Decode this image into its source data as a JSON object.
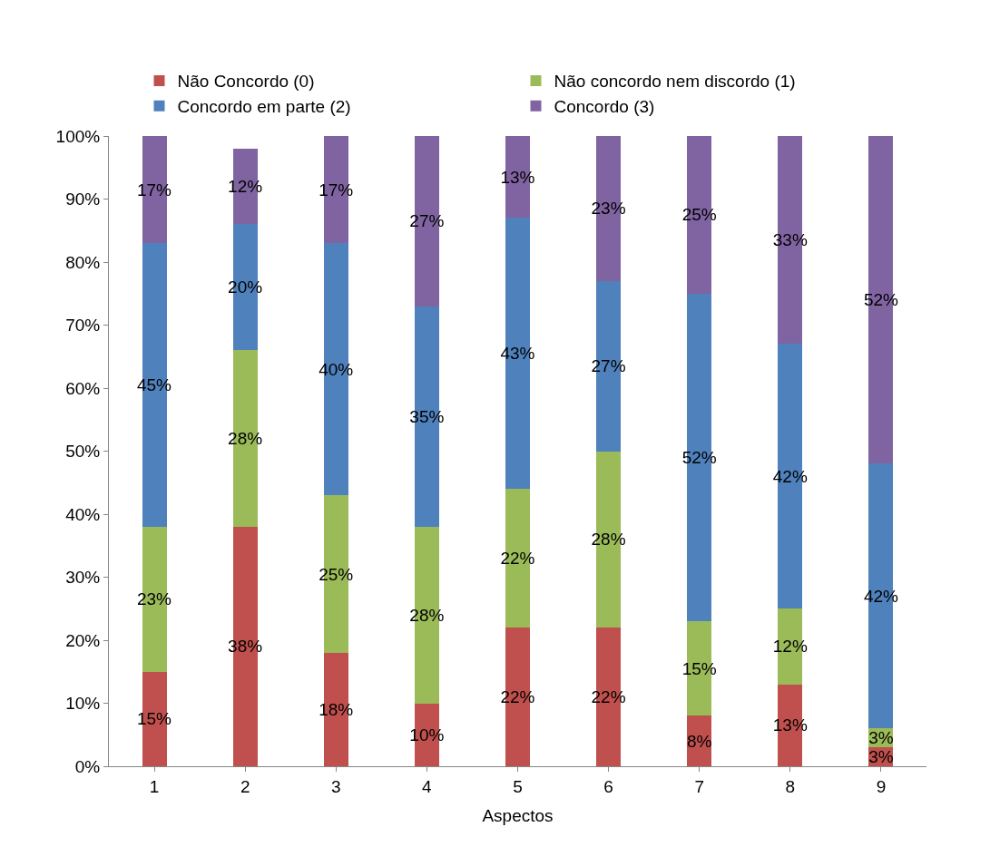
{
  "chart_data": {
    "type": "bar",
    "stacked": true,
    "xlabel": "Aspectos",
    "categories": [
      "1",
      "2",
      "3",
      "4",
      "5",
      "6",
      "7",
      "8",
      "9"
    ],
    "series": [
      {
        "name": "Não Concordo (0)",
        "color": "#c0504d",
        "values": [
          15,
          38,
          18,
          10,
          22,
          22,
          8,
          13,
          3
        ],
        "value_labels": [
          "15%",
          "38%",
          "18%",
          "10%",
          "22%",
          "22%",
          "8%",
          "13%",
          "3%"
        ]
      },
      {
        "name": "Não concordo nem discordo (1)",
        "color": "#9bbb59",
        "values": [
          23,
          28,
          25,
          28,
          22,
          28,
          15,
          12,
          3
        ],
        "value_labels": [
          "23%",
          "28%",
          "25%",
          "28%",
          "22%",
          "28%",
          "15%",
          "12%",
          "3%"
        ]
      },
      {
        "name": "Concordo em parte (2)",
        "color": "#4f81bd",
        "values": [
          45,
          20,
          40,
          35,
          43,
          27,
          52,
          42,
          42
        ],
        "value_labels": [
          "45%",
          "20%",
          "40%",
          "35%",
          "43%",
          "27%",
          "52%",
          "42%",
          "42%"
        ]
      },
      {
        "name": "Concordo (3)",
        "color": "#8064a2",
        "values": [
          17,
          12,
          17,
          27,
          13,
          23,
          25,
          33,
          52
        ],
        "value_labels": [
          "17%",
          "12%",
          "17%",
          "27%",
          "13%",
          "23%",
          "25%",
          "33%",
          "52%"
        ]
      }
    ],
    "ylim": [
      0,
      100
    ],
    "yticks": [
      {
        "value": 0,
        "label": "0%"
      },
      {
        "value": 10,
        "label": "10%"
      },
      {
        "value": 20,
        "label": "20%"
      },
      {
        "value": 30,
        "label": "30%"
      },
      {
        "value": 40,
        "label": "40%"
      },
      {
        "value": 50,
        "label": "50%"
      },
      {
        "value": 60,
        "label": "60%"
      },
      {
        "value": 70,
        "label": "70%"
      },
      {
        "value": 80,
        "label": "80%"
      },
      {
        "value": 90,
        "label": "90%"
      },
      {
        "value": 100,
        "label": "100%"
      }
    ],
    "legend": "top"
  }
}
